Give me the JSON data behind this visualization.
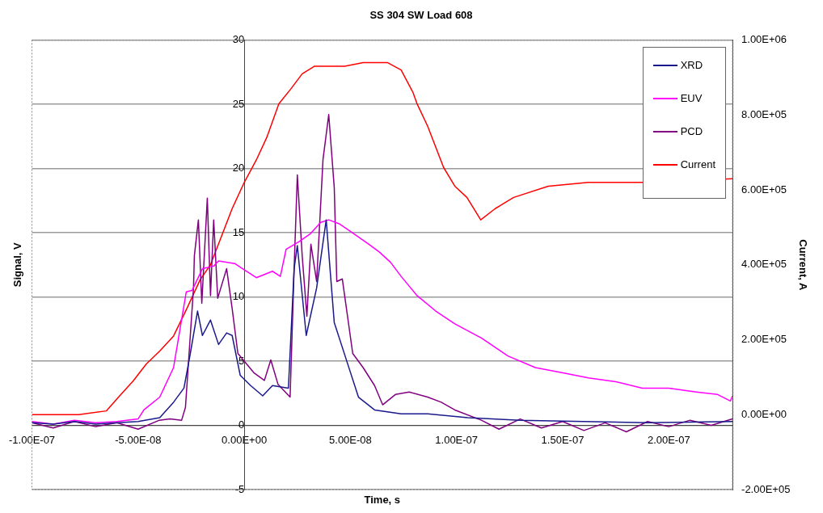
{
  "chart_data": {
    "type": "line",
    "title": "SS 304 SW Load 608",
    "xlabel": "Time, s",
    "ylabel": "Signal, V",
    "y2label": "Current, A",
    "xlim": [
      -1e-07,
      2.3e-07
    ],
    "xticks": [
      {
        "value": -1e-07,
        "label": "-1.00E-07"
      },
      {
        "value": -5e-08,
        "label": "-5.00E-08"
      },
      {
        "value": 0,
        "label": "0.00E+00"
      },
      {
        "value": 5e-08,
        "label": "5.00E-08"
      },
      {
        "value": 1e-07,
        "label": "1.00E-07"
      },
      {
        "value": 1.5e-07,
        "label": "1.50E-07"
      },
      {
        "value": 2e-07,
        "label": "2.00E-07"
      }
    ],
    "ylim": [
      -5,
      30
    ],
    "yticks": [
      -5,
      0,
      5,
      10,
      15,
      20,
      25,
      30
    ],
    "y2lim": [
      -200000,
      1000000
    ],
    "y2ticks": [
      {
        "value": -200000,
        "label": "-2.00E+05"
      },
      {
        "value": 0,
        "label": "0.00E+00"
      },
      {
        "value": 200000,
        "label": "2.00E+05"
      },
      {
        "value": 400000,
        "label": "4.00E+05"
      },
      {
        "value": 600000,
        "label": "6.00E+05"
      },
      {
        "value": 800000,
        "label": "8.00E+05"
      },
      {
        "value": 1000000,
        "label": "1.00E+06"
      }
    ],
    "grid": "y",
    "legend": "top right",
    "marker": "none",
    "series": [
      {
        "name": "XRD",
        "color": "#1a1a8c",
        "x": [
          -1e-07,
          -9e-08,
          -8e-08,
          -7e-08,
          -6e-08,
          -5e-08,
          -3.98e-08,
          -3.33e-08,
          -2.84e-08,
          -2.54e-08,
          -2.2e-08,
          -1.97e-08,
          -1.59e-08,
          -1.21e-08,
          -8.3e-09,
          -5.7e-09,
          -1.9e-09,
          3e-09,
          8.7e-09,
          1.33e-08,
          2.08e-08,
          2.35e-08,
          2.5e-08,
          2.92e-08,
          3.41e-08,
          3.86e-08,
          4.24e-08,
          4.85e-08,
          5.38e-08,
          6.14e-08,
          7.39e-08,
          8.64e-08,
          1.053e-07,
          1.3e-07,
          1.6e-07,
          1.9e-07,
          2.3e-07
        ],
        "values": [
          0.2,
          0.1,
          0.3,
          0.1,
          0.2,
          0.3,
          0.6,
          1.8,
          2.9,
          5.6,
          8.9,
          7.0,
          8.2,
          6.3,
          7.2,
          7.0,
          3.9,
          3.1,
          2.3,
          3.1,
          2.9,
          12.2,
          14.0,
          7.0,
          10.7,
          16.0,
          8.0,
          4.9,
          2.2,
          1.2,
          0.9,
          0.9,
          0.6,
          0.4,
          0.3,
          0.2,
          0.3
        ]
      },
      {
        "name": "EUV",
        "color": "#ff00ff",
        "x": [
          -1e-07,
          -9e-08,
          -8e-08,
          -7e-08,
          -6e-08,
          -5e-08,
          -4.73e-08,
          -3.98e-08,
          -3.33e-08,
          -2.73e-08,
          -2.46e-08,
          -1.97e-08,
          -1.44e-08,
          -1.21e-08,
          -4.5e-09,
          -8e-10,
          5.7e-09,
          1.33e-08,
          1.7e-08,
          1.97e-08,
          2.58e-08,
          3.1e-08,
          3.6e-08,
          3.98e-08,
          4.47e-08,
          5e-08,
          5.87e-08,
          6.36e-08,
          6.89e-08,
          7.39e-08,
          8.14e-08,
          9.02e-08,
          9.92e-08,
          1.117e-07,
          1.242e-07,
          1.371e-07,
          1.496e-07,
          1.621e-07,
          1.75e-07,
          1.875e-07,
          2e-07,
          2.13e-07,
          2.23e-07,
          2.29e-07,
          2.3e-07
        ],
        "values": [
          0.3,
          0.1,
          0.4,
          0.2,
          0.3,
          0.5,
          1.2,
          2.2,
          4.5,
          10.4,
          10.5,
          12.2,
          12.4,
          12.8,
          12.6,
          12.2,
          11.5,
          12.0,
          11.6,
          13.7,
          14.3,
          14.9,
          15.8,
          16.0,
          15.7,
          15.1,
          14.1,
          13.5,
          12.7,
          11.6,
          10.1,
          8.9,
          7.9,
          6.8,
          5.4,
          4.5,
          4.1,
          3.7,
          3.4,
          2.9,
          2.9,
          2.6,
          2.4,
          1.9,
          2.3
        ]
      },
      {
        "name": "PCD",
        "color": "#800080",
        "x": [
          -1e-07,
          -9e-08,
          -8e-08,
          -7e-08,
          -6e-08,
          -5e-08,
          -4e-08,
          -3.5e-08,
          -2.95e-08,
          -2.77e-08,
          -2.39e-08,
          -2.35e-08,
          -2.16e-08,
          -2e-08,
          -1.74e-08,
          -1.59e-08,
          -1.44e-08,
          -1.25e-08,
          -8.3e-09,
          -5.7e-09,
          -3e-09,
          4.5e-09,
          9.5e-09,
          1.25e-08,
          1.59e-08,
          2.16e-08,
          2.35e-08,
          2.5e-08,
          2.73e-08,
          2.95e-08,
          3.14e-08,
          3.41e-08,
          3.71e-08,
          3.98e-08,
          4.24e-08,
          4.36e-08,
          4.62e-08,
          5.11e-08,
          5.6e-08,
          6.14e-08,
          6.52e-08,
          7.12e-08,
          7.77e-08,
          8.64e-08,
          9.28e-08,
          9.92e-08,
          1.117e-07,
          1.2e-07,
          1.3e-07,
          1.4e-07,
          1.5e-07,
          1.6e-07,
          1.7e-07,
          1.8e-07,
          1.9e-07,
          2e-07,
          2.1e-07,
          2.2e-07,
          2.3e-07
        ],
        "values": [
          0.2,
          -0.2,
          0.3,
          -0.1,
          0.2,
          -0.3,
          0.4,
          0.5,
          0.4,
          1.4,
          10.7,
          13.2,
          16.0,
          9.5,
          17.7,
          10.1,
          16.0,
          9.9,
          12.2,
          9.1,
          5.6,
          4.1,
          3.5,
          5.1,
          3.2,
          2.2,
          12.2,
          19.5,
          13.2,
          8.5,
          14.1,
          11.2,
          20.7,
          24.2,
          18.5,
          11.2,
          11.4,
          5.6,
          4.5,
          3.1,
          1.6,
          2.4,
          2.6,
          2.2,
          1.8,
          1.2,
          0.4,
          -0.3,
          0.5,
          -0.2,
          0.3,
          -0.4,
          0.2,
          -0.5,
          0.3,
          -0.1,
          0.4,
          0.0,
          0.5
        ]
      },
      {
        "name": "Current",
        "color": "#ff0000",
        "axis": "y2",
        "x": [
          -1e-07,
          -7.8e-08,
          -6.5e-08,
          -5.87e-08,
          -5.23e-08,
          -4.62e-08,
          -3.98e-08,
          -3.33e-08,
          -2.73e-08,
          -2.08e-08,
          -1.59e-08,
          -5.7e-09,
          0,
          5.7e-09,
          1.06e-08,
          1.63e-08,
          2.2e-08,
          2.73e-08,
          3.3e-08,
          4.09e-08,
          4.73e-08,
          5.6e-08,
          6.74e-08,
          7.39e-08,
          7.95e-08,
          8.14e-08,
          8.64e-08,
          9.39e-08,
          9.92e-08,
          1.049e-07,
          1.114e-07,
          1.182e-07,
          1.269e-07,
          1.432e-07,
          1.621e-07,
          1.875e-07,
          2.3e-07
        ],
        "values": [
          0,
          0,
          10000,
          50000,
          90000,
          135000,
          170000,
          210000,
          280000,
          360000,
          400000,
          550000,
          620000,
          680000,
          740000,
          830000,
          870000,
          910000,
          930000,
          930000,
          930000,
          940000,
          940000,
          920000,
          860000,
          830000,
          770000,
          660000,
          610000,
          580000,
          520000,
          550000,
          580000,
          610000,
          620000,
          620000,
          630000
        ]
      }
    ]
  }
}
